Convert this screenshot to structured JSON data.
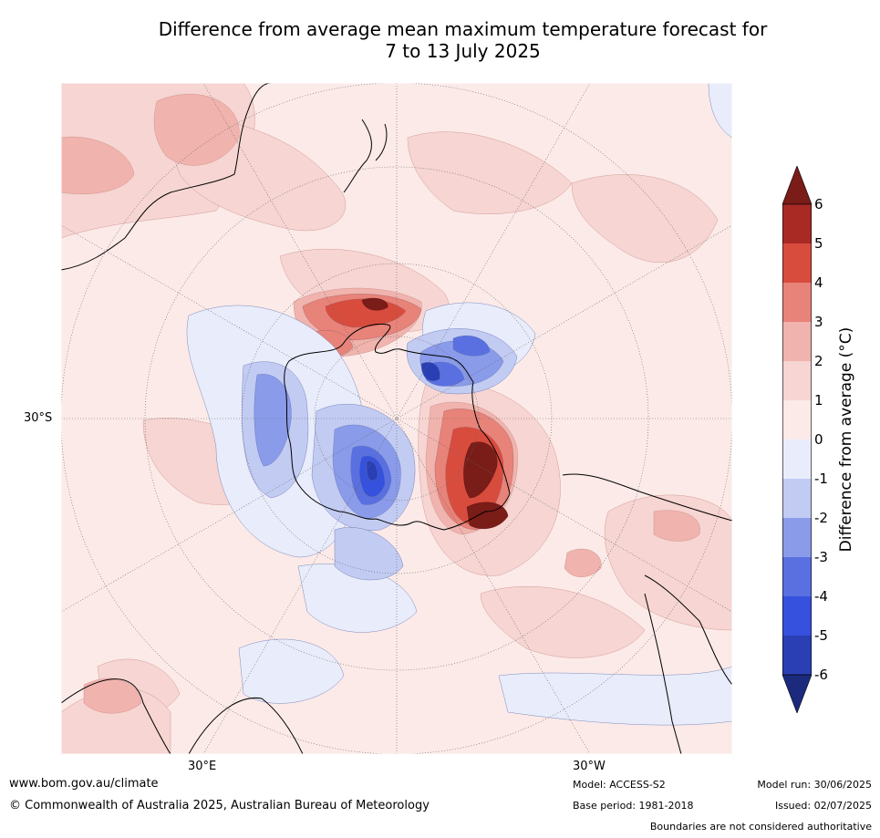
{
  "title_line1": "Difference from average mean maximum temperature forecast for",
  "title_line2": "7 to 13 July 2025",
  "axis_labels": {
    "lat": "30°S",
    "lon_east": "30°E",
    "lon_west": "30°W"
  },
  "colorbar": {
    "title": "Difference from average (°C)",
    "ticks": [
      "6",
      "5",
      "4",
      "3",
      "2",
      "1",
      "0",
      "-1",
      "-2",
      "-3",
      "-4",
      "-5",
      "-6"
    ],
    "colors": [
      "#7a1c18",
      "#a92a25",
      "#d84c3e",
      "#e8837a",
      "#f0b3ad",
      "#f6d5d2",
      "#fbeae8",
      "#e9ecfa",
      "#c2cbf2",
      "#8a9bea",
      "#5a70e0",
      "#3551dd",
      "#2a3fb3",
      "#1c2a7e"
    ]
  },
  "footer": {
    "website": "www.bom.gov.au/climate",
    "copyright": "© Commonwealth of Australia 2025, Australian Bureau of Meteorology",
    "model": "Model: ACCESS-S2",
    "base_period": "Base period: 1981-2018",
    "model_run": "Model run: 30/06/2025",
    "issued": "Issued: 02/07/2025",
    "disclaimer": "Boundaries are not considered authoritative"
  }
}
